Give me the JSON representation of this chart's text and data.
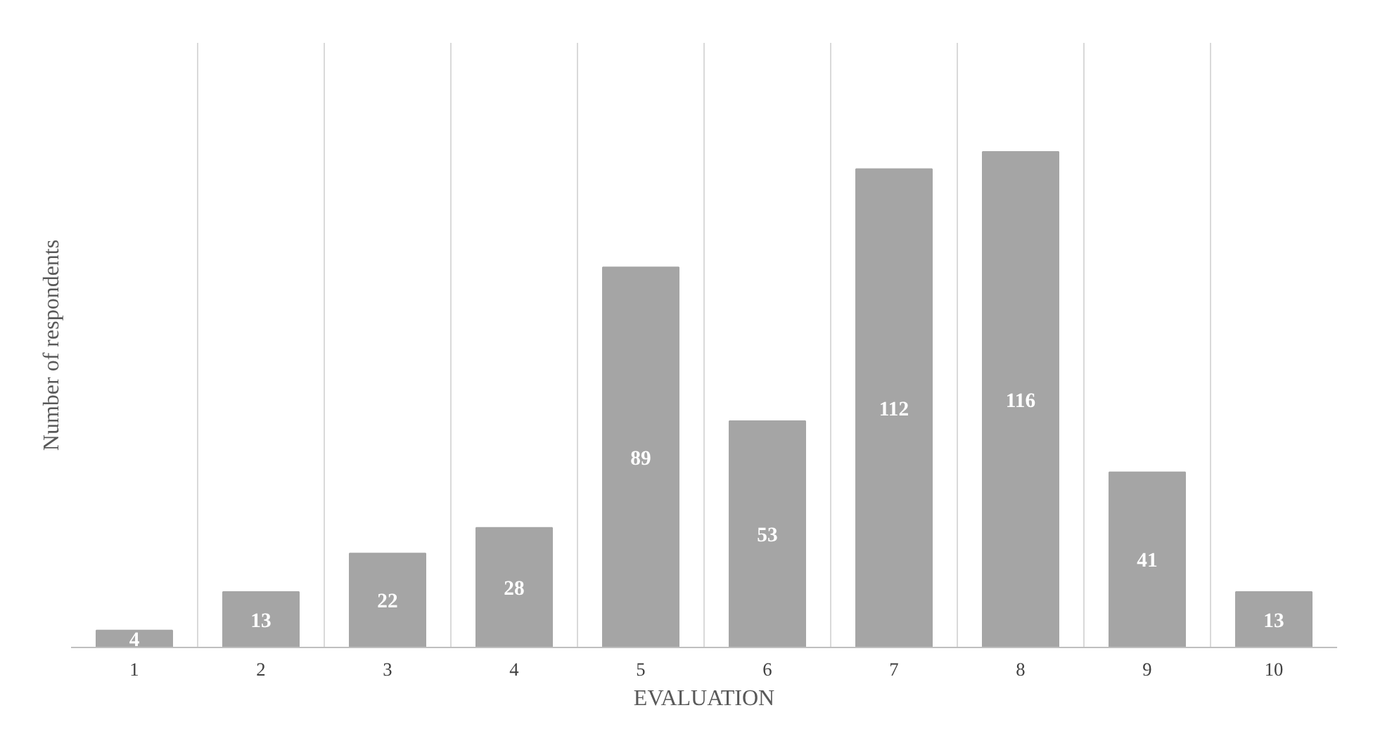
{
  "chart_data": {
    "type": "bar",
    "xlabel": "EVALUATION",
    "ylabel": "Number of respondents",
    "categories": [
      "1",
      "2",
      "3",
      "4",
      "5",
      "6",
      "7",
      "8",
      "9",
      "10"
    ],
    "values": [
      4,
      13,
      22,
      28,
      89,
      53,
      112,
      116,
      41,
      13
    ],
    "color": "#a5a5a5",
    "data_labels": true,
    "grid": "x"
  }
}
